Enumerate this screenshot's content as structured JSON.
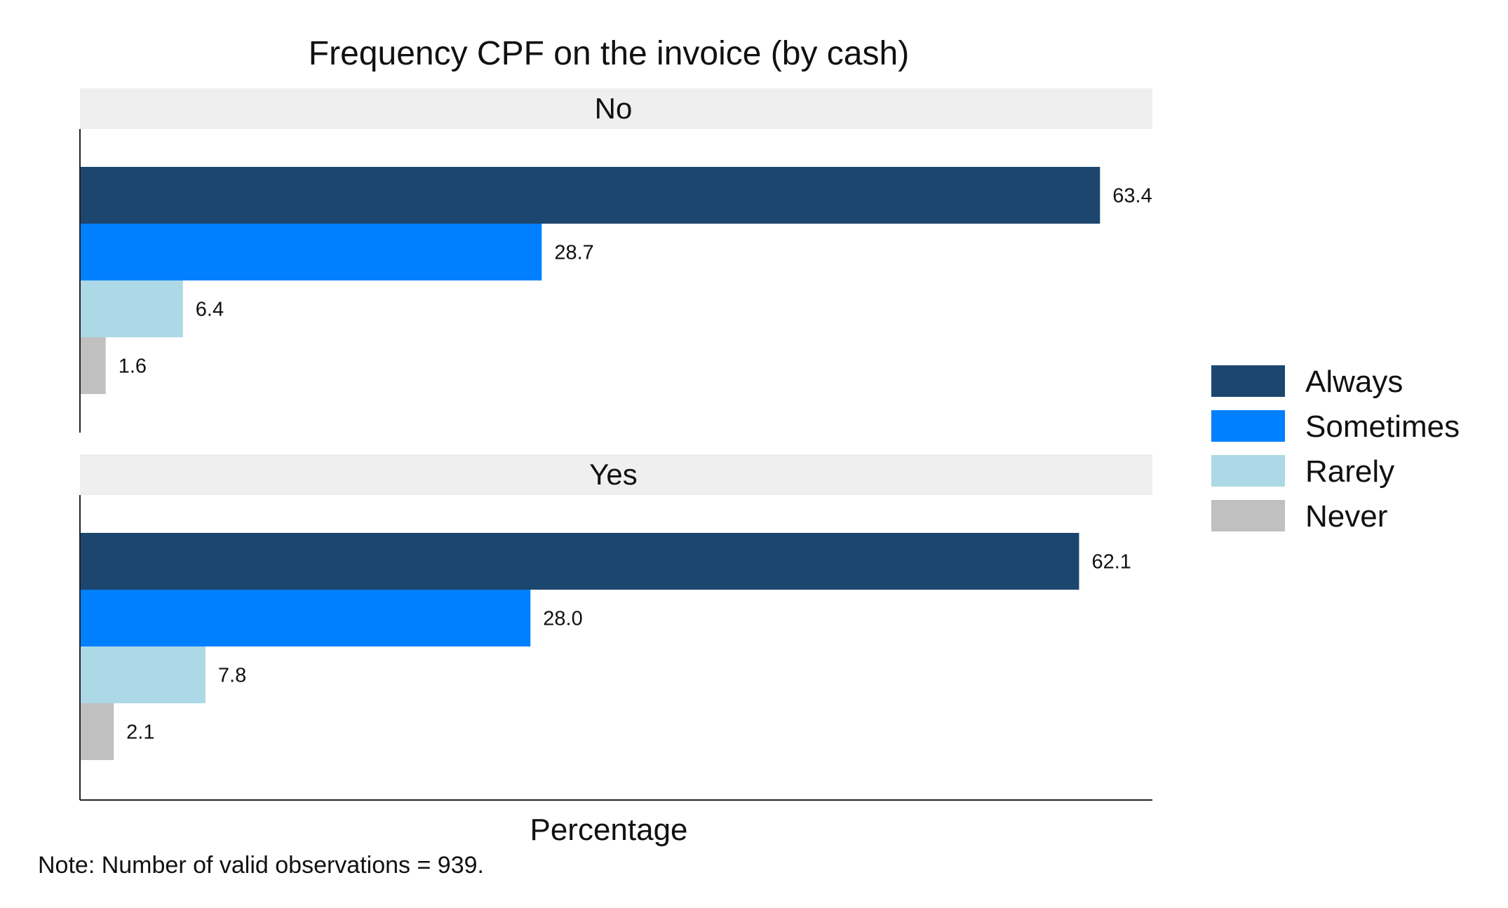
{
  "chart_data": {
    "type": "bar",
    "orientation": "horizontal",
    "title": "Frequency CPF on the invoice (by cash)",
    "xlabel": "Percentage",
    "ylabel": "",
    "note": "Note: Number of valid observations = 939.",
    "xlim": [
      0,
      65
    ],
    "grid": false,
    "legend_position": "right",
    "categories": [
      "Always",
      "Sometimes",
      "Rarely",
      "Never"
    ],
    "colors": {
      "Always": "#1c466e",
      "Sometimes": "#0080ff",
      "Rarely": "#add8e6",
      "Never": "#c0c0c0",
      "strip_background": "#efefef"
    },
    "panels": [
      {
        "label": "No",
        "values": [
          63.4,
          28.7,
          6.4,
          1.6
        ],
        "labels": [
          "63.4",
          "28.7",
          "6.4",
          "1.6"
        ]
      },
      {
        "label": "Yes",
        "values": [
          62.1,
          28.0,
          7.8,
          2.1
        ],
        "labels": [
          "62.1",
          "28.0",
          "7.8",
          "2.1"
        ]
      }
    ]
  }
}
